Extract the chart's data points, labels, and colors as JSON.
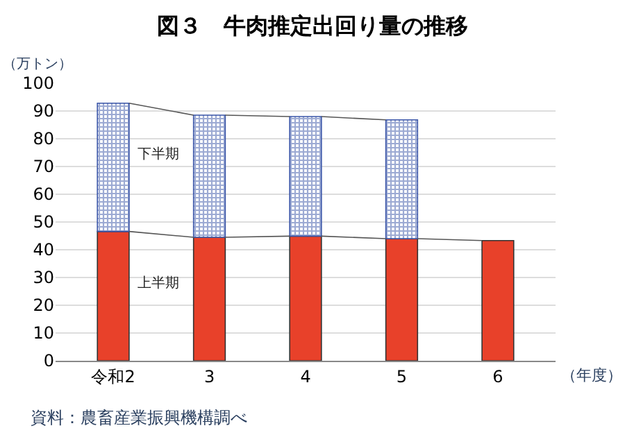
{
  "chart_data": {
    "type": "bar",
    "title": "図３　牛肉推定出回り量の推移",
    "ylabel": "（万トン）",
    "xlabel": "（年度）",
    "categories": [
      "令和2",
      "3",
      "4",
      "5",
      "6"
    ],
    "stacked": true,
    "series": [
      {
        "name": "上半期",
        "color": "#e8412a",
        "values": [
          46.6,
          44.5,
          44.9,
          44.0,
          43.3
        ]
      },
      {
        "name": "下半期",
        "color": "#3a55a8",
        "values": [
          46.2,
          44.0,
          43.1,
          42.8,
          null
        ]
      }
    ],
    "ylim": [
      0,
      100
    ],
    "yticks": [
      0,
      10,
      20,
      30,
      40,
      50,
      60,
      70,
      80,
      90,
      100
    ],
    "grid": "y",
    "legend": false,
    "annotations": [
      "資料：農畜産業振興機構調べ"
    ]
  }
}
